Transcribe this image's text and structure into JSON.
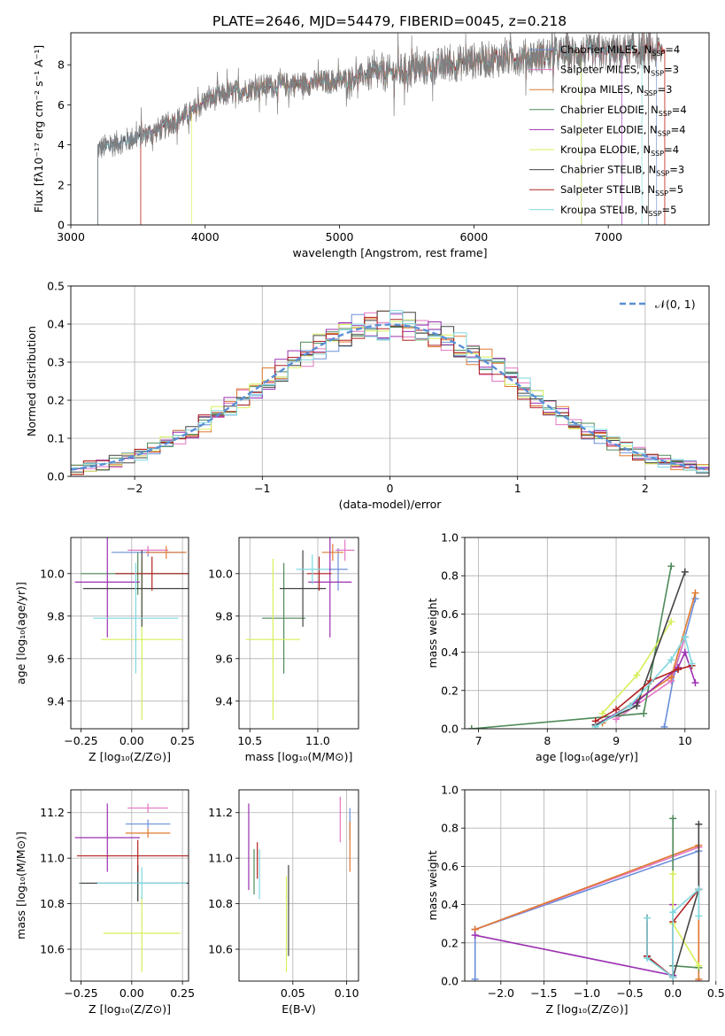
{
  "title": "PLATE=2646, MJD=54479, FIBERID=0045, z=0.218",
  "colors": {
    "chabrier_miles": "#6a8fd8",
    "salpeter_miles": "#e377c2",
    "kroupa_miles": "#e07a30",
    "chabrier_elodie": "#4e8a5a",
    "salpeter_elodie": "#9b30b0",
    "kroupa_elodie": "#d7ef5a",
    "chabrier_stelib": "#444444",
    "salpeter_stelib": "#b22222",
    "kroupa_stelib": "#7fd7e0",
    "observed": "#7f7f7f",
    "normal": "#5b8fd6"
  },
  "chart_data": [
    {
      "id": "spectrum",
      "type": "line",
      "xlabel": "wavelength [Angstrom, rest frame]",
      "ylabel": "Flux [fλ10⁻¹⁷ erg cm⁻² s⁻¹ A⁻¹]",
      "xlim": [
        3000,
        7750
      ],
      "ylim": [
        0,
        9.6
      ],
      "xticks": [
        3000,
        4000,
        5000,
        6000,
        7000
      ],
      "yticks": [
        0,
        2,
        4,
        6,
        8
      ],
      "grid": false,
      "legend_loc": "upper-right",
      "legend": [
        "Chabrier MILES, N_SSP=4",
        "Salpeter MILES, N_SSP=3",
        "Kroupa MILES, N_SSP=3",
        "Chabrier ELODIE, N_SSP=4",
        "Salpeter ELODIE, N_SSP=4",
        "Kroupa ELODIE, N_SSP=4",
        "Chabrier STELIB, N_SSP=3",
        "Salpeter STELIB, N_SSP=5",
        "Kroupa STELIB, N_SSP=5"
      ],
      "continuum_x": [
        3200,
        3300,
        3400,
        3500,
        3600,
        3700,
        3800,
        3900,
        4000,
        4200,
        4400,
        4600,
        4800,
        5000,
        5200,
        5400,
        5600,
        5800,
        6000,
        6200,
        6400,
        6600,
        6800,
        7000,
        7200,
        7400
      ],
      "continuum_y": [
        3.8,
        4.0,
        4.2,
        4.4,
        4.6,
        4.9,
        5.3,
        5.6,
        6.2,
        6.6,
        6.9,
        7.0,
        7.1,
        7.2,
        7.5,
        7.6,
        7.8,
        8.0,
        8.2,
        8.3,
        8.4,
        8.5,
        8.6,
        8.6,
        8.7,
        8.7
      ],
      "observed_range": [
        3200,
        7400
      ],
      "model_starts": [
        3200,
        3520,
        3520,
        3200,
        3200,
        3900,
        3200,
        3520,
        3200
      ],
      "model_ends": [
        7360,
        7420,
        7420,
        6800,
        7100,
        6800,
        7300,
        7420,
        7250
      ]
    },
    {
      "id": "residuals",
      "type": "line",
      "xlabel": "(data-model)/error",
      "ylabel": "Normed distribution",
      "xlim": [
        -2.5,
        2.5
      ],
      "ylim": [
        0,
        0.5
      ],
      "xticks": [
        -2,
        -1,
        0,
        1,
        2
      ],
      "xticklabels": [
        "−2",
        "−1",
        "0",
        "1",
        "2"
      ],
      "yticks": [
        0.0,
        0.1,
        0.2,
        0.3,
        0.4,
        0.5
      ],
      "yticklabels": [
        "0.0",
        "0.1",
        "0.2",
        "0.3",
        "0.4",
        "0.5"
      ],
      "grid": true,
      "legend_loc": "upper-right",
      "legend": [
        "𝒩(0, 1)"
      ],
      "bin_width": 0.1,
      "hist_series": 9
    },
    {
      "id": "age_vs_Z",
      "type": "scatter",
      "xlabel": "Z [log₁₀(Z/Z⊙)]",
      "ylabel": "age  [log₁₀(age/yr)]",
      "xlim": [
        -0.3,
        0.28
      ],
      "ylim": [
        9.27,
        10.17
      ],
      "xticks": [
        -0.25,
        0.0,
        0.25
      ],
      "xticklabels": [
        "−0.25",
        "0.00",
        "0.25"
      ],
      "yticks": [
        9.4,
        9.6,
        9.8,
        10.0
      ],
      "yticklabels": [
        "9.4",
        "9.6",
        "9.8",
        "10.0"
      ],
      "grid": true,
      "points": [
        {
          "x": 0.08,
          "xerr": 0.18,
          "y": 10.1,
          "yerr": 0.02
        },
        {
          "x": 0.08,
          "xerr": 0.1,
          "y": 10.11,
          "yerr": 0.02
        },
        {
          "x": 0.17,
          "xerr": 0.1,
          "y": 10.1,
          "yerr": 0.03
        },
        {
          "x": 0.03,
          "xerr": 0.28,
          "y": 10.0,
          "yerr": 0.1
        },
        {
          "x": -0.12,
          "xerr": 0.16,
          "y": 9.96,
          "yerr": 0.26
        },
        {
          "x": 0.05,
          "xerr": 0.2,
          "y": 9.69,
          "yerr": 0.38
        },
        {
          "x": 0.05,
          "xerr": 0.29,
          "y": 9.93,
          "yerr": 0.18
        },
        {
          "x": 0.1,
          "xerr": 0.18,
          "y": 10.0,
          "yerr": 0.08
        },
        {
          "x": 0.02,
          "xerr": 0.21,
          "y": 9.79,
          "yerr": 0.26
        }
      ]
    },
    {
      "id": "age_vs_mass",
      "type": "scatter",
      "xlabel": "mass [log₁₀(M/M⊙)]",
      "ylabel": "",
      "xlim": [
        10.42,
        11.3
      ],
      "ylim": [
        9.27,
        10.17
      ],
      "xticks": [
        10.5,
        11.0
      ],
      "xticklabels": [
        "10.5",
        "11.0"
      ],
      "yticks": [
        9.4,
        9.6,
        9.8,
        10.0
      ],
      "yticklabels": [
        "9.4",
        "9.6",
        "9.8",
        "10.0"
      ],
      "grid": true,
      "points": [
        {
          "x": 11.15,
          "xerr": 0.07,
          "y": 10.02,
          "yerr": 0.1
        },
        {
          "x": 11.2,
          "xerr": 0.07,
          "y": 10.11,
          "yerr": 0.05
        },
        {
          "x": 11.11,
          "xerr": 0.08,
          "y": 10.1,
          "yerr": 0.04
        },
        {
          "x": 10.75,
          "xerr": 0.16,
          "y": 9.79,
          "yerr": 0.26
        },
        {
          "x": 11.09,
          "xerr": 0.16,
          "y": 9.96,
          "yerr": 0.26
        },
        {
          "x": 10.67,
          "xerr": 0.2,
          "y": 9.69,
          "yerr": 0.38
        },
        {
          "x": 10.89,
          "xerr": 0.17,
          "y": 9.93,
          "yerr": 0.18
        },
        {
          "x": 11.01,
          "xerr": 0.09,
          "y": 10.0,
          "yerr": 0.08
        },
        {
          "x": 10.96,
          "xerr": 0.12,
          "y": 10.02,
          "yerr": 0.07
        }
      ]
    },
    {
      "id": "weight_vs_age",
      "type": "line",
      "xlabel": "age  [log₁₀(age/yr)]",
      "ylabel": "mass weight",
      "xlim": [
        6.8,
        10.35
      ],
      "ylim": [
        0,
        1.0
      ],
      "xticks": [
        7,
        8,
        9,
        10
      ],
      "yticks": [
        0.0,
        0.2,
        0.4,
        0.6,
        0.8,
        1.0
      ],
      "yticklabels": [
        "0.0",
        "0.2",
        "0.4",
        "0.6",
        "0.8",
        "1.0"
      ],
      "grid": true,
      "series": [
        {
          "x": [
            9.7,
            9.85,
            10.0,
            10.15
          ],
          "y": [
            0.01,
            0.3,
            0.48,
            0.68
          ]
        },
        {
          "x": [
            9.0,
            9.8,
            10.0
          ],
          "y": [
            0.05,
            0.25,
            0.48
          ]
        },
        {
          "x": [
            8.8,
            9.8,
            10.15
          ],
          "y": [
            0.03,
            0.27,
            0.71
          ]
        },
        {
          "x": [
            6.9,
            9.4,
            9.8
          ],
          "y": [
            0.0,
            0.08,
            0.85
          ]
        },
        {
          "x": [
            8.7,
            9.3,
            9.9,
            10.0,
            10.15
          ],
          "y": [
            0.02,
            0.14,
            0.32,
            0.4,
            0.24
          ]
        },
        {
          "x": [
            8.8,
            9.3,
            9.8
          ],
          "y": [
            0.08,
            0.28,
            0.56
          ]
        },
        {
          "x": [
            8.7,
            9.3,
            10.0
          ],
          "y": [
            0.02,
            0.12,
            0.82
          ]
        },
        {
          "x": [
            8.7,
            9.0,
            9.5,
            9.9,
            10.1
          ],
          "y": [
            0.04,
            0.1,
            0.25,
            0.31,
            0.33
          ]
        },
        {
          "x": [
            8.7,
            9.2,
            9.8,
            10.0,
            10.1
          ],
          "y": [
            0.01,
            0.12,
            0.36,
            0.48,
            0.34
          ]
        }
      ]
    },
    {
      "id": "mass_vs_Z",
      "type": "scatter",
      "xlabel": "Z [log₁₀(Z/Z⊙)]",
      "ylabel": "mass [log₁₀(M/M⊙)]",
      "xlim": [
        -0.3,
        0.28
      ],
      "ylim": [
        10.46,
        11.3
      ],
      "xticks": [
        -0.25,
        0.0,
        0.25
      ],
      "xticklabels": [
        "−0.25",
        "0.00",
        "0.25"
      ],
      "yticks": [
        10.6,
        10.8,
        11.0,
        11.2
      ],
      "yticklabels": [
        "10.6",
        "10.8",
        "11.0",
        "11.2"
      ],
      "grid": true,
      "points": [
        {
          "x": 0.08,
          "xerr": 0.11,
          "y": 11.15,
          "yerr": 0.02
        },
        {
          "x": 0.08,
          "xerr": 0.1,
          "y": 11.22,
          "yerr": 0.02
        },
        {
          "x": 0.08,
          "xerr": 0.11,
          "y": 11.11,
          "yerr": 0.02
        },
        {
          "x": 0.03,
          "xerr": 0.29,
          "y": 10.89,
          "yerr": 0.08
        },
        {
          "x": -0.12,
          "xerr": 0.16,
          "y": 11.09,
          "yerr": 0.15
        },
        {
          "x": 0.05,
          "xerr": 0.19,
          "y": 10.67,
          "yerr": 0.17
        },
        {
          "x": 0.03,
          "xerr": 0.28,
          "y": 10.89,
          "yerr": 0.08
        },
        {
          "x": 0.03,
          "xerr": 0.3,
          "y": 11.01,
          "yerr": 0.07
        },
        {
          "x": 0.05,
          "xerr": 0.22,
          "y": 10.89,
          "yerr": 0.07
        }
      ]
    },
    {
      "id": "mass_vs_ebv",
      "type": "scatter",
      "xlabel": "E(B-V)",
      "ylabel": "",
      "xlim": [
        0.0,
        0.111
      ],
      "ylim": [
        10.46,
        11.3
      ],
      "xticks": [
        0.05,
        0.1
      ],
      "xticklabels": [
        "0.05",
        "0.10"
      ],
      "yticks": [
        10.6,
        10.8,
        11.0,
        11.2
      ],
      "yticklabels": [
        "10.6",
        "10.8",
        "11.0",
        "11.2"
      ],
      "grid": true,
      "points": [
        {
          "x": 0.103,
          "xerr": 0.0,
          "y": 11.15,
          "yerr": 0.07
        },
        {
          "x": 0.094,
          "xerr": 0.0,
          "y": 11.17,
          "yerr": 0.1
        },
        {
          "x": 0.103,
          "xerr": 0.0,
          "y": 11.05,
          "yerr": 0.11
        },
        {
          "x": 0.014,
          "xerr": 0.0,
          "y": 10.94,
          "yerr": 0.1
        },
        {
          "x": 0.009,
          "xerr": 0.0,
          "y": 11.05,
          "yerr": 0.19
        },
        {
          "x": 0.044,
          "xerr": 0.0,
          "y": 10.71,
          "yerr": 0.21
        },
        {
          "x": 0.046,
          "xerr": 0.0,
          "y": 10.77,
          "yerr": 0.2
        },
        {
          "x": 0.017,
          "xerr": 0.0,
          "y": 10.99,
          "yerr": 0.08
        },
        {
          "x": 0.019,
          "xerr": 0.0,
          "y": 10.93,
          "yerr": 0.11
        }
      ]
    },
    {
      "id": "weight_vs_Z",
      "type": "line",
      "xlabel": "Z [log₁₀(Z/Z⊙)]",
      "ylabel": "mass weight",
      "xlim": [
        -2.42,
        0.42
      ],
      "ylim": [
        0,
        1.0
      ],
      "xticks": [
        -2.0,
        -1.5,
        -1.0,
        -0.5,
        0.0,
        0.5
      ],
      "xticklabels": [
        "−2.0",
        "−1.5",
        "−1.0",
        "−0.5",
        "0.0",
        "0.5"
      ],
      "yticks": [
        0.0,
        0.2,
        0.4,
        0.6,
        0.8,
        1.0
      ],
      "yticklabels": [
        "0.0",
        "0.2",
        "0.4",
        "0.6",
        "0.8",
        "1.0"
      ],
      "grid": true,
      "series": [
        {
          "x": [
            -2.3,
            -2.3,
            0.3,
            0.3
          ],
          "y": [
            0.01,
            0.27,
            0.68,
            0.48
          ]
        },
        {
          "x": [
            -2.3,
            0.3,
            0.3
          ],
          "y": [
            0.27,
            0.7,
            0.0
          ]
        },
        {
          "x": [
            -2.3,
            0.3,
            0.3
          ],
          "y": [
            0.27,
            0.71,
            0.01
          ]
        },
        {
          "x": [
            0.0,
            0.0,
            0.3
          ],
          "y": [
            0.85,
            0.08,
            0.07
          ]
        },
        {
          "x": [
            -2.3,
            0.0,
            0.0
          ],
          "y": [
            0.24,
            0.03,
            0.4
          ]
        },
        {
          "x": [
            0.0,
            0.0,
            0.3
          ],
          "y": [
            0.56,
            0.3,
            0.08
          ]
        },
        {
          "x": [
            -0.3,
            -0.3,
            0.0,
            0.3,
            0.3
          ],
          "y": [
            0.33,
            0.13,
            0.02,
            0.48,
            0.82
          ]
        },
        {
          "x": [
            -0.3,
            -0.3,
            0.0,
            0.0,
            0.3
          ],
          "y": [
            0.33,
            0.13,
            0.02,
            0.31,
            0.48
          ]
        },
        {
          "x": [
            -0.3,
            -0.3,
            0.0,
            0.0,
            0.3,
            0.3
          ],
          "y": [
            0.33,
            0.12,
            0.02,
            0.36,
            0.48,
            0.34
          ]
        }
      ]
    }
  ]
}
